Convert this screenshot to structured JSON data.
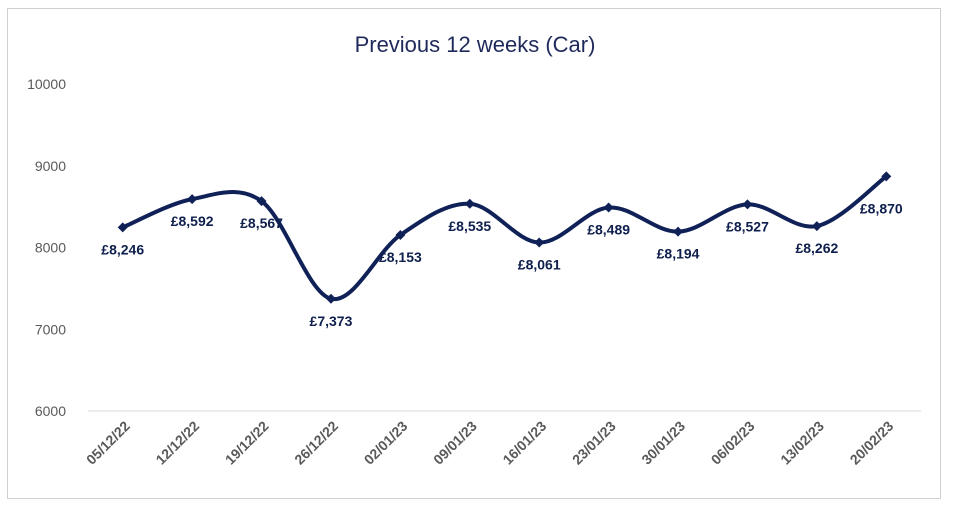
{
  "chart_data": {
    "type": "line",
    "title": "Previous 12 weeks (Car)",
    "xlabel": "",
    "ylabel": "",
    "ylim": [
      6000,
      10000
    ],
    "yticks": [
      6000,
      7000,
      8000,
      9000,
      10000
    ],
    "ytick_labels": [
      "6000",
      "7000",
      "8000",
      "9000",
      "10000"
    ],
    "categories": [
      "05/12/22",
      "12/12/22",
      "19/12/22",
      "26/12/22",
      "02/01/23",
      "09/01/23",
      "16/01/23",
      "23/01/23",
      "30/01/23",
      "06/02/23",
      "13/02/23",
      "20/02/23"
    ],
    "series": [
      {
        "name": "Car",
        "values": [
          8246,
          8592,
          8567,
          7373,
          8153,
          8535,
          8061,
          8489,
          8194,
          8527,
          8262,
          8870
        ],
        "labels": [
          "£8,246",
          "£8,592",
          "£8,567",
          "£7,373",
          "£8,153",
          "£8,535",
          "£8,061",
          "£8,489",
          "£8,194",
          "£8,527",
          "£8,262",
          "£8,870"
        ],
        "color": "#0f2157"
      }
    ],
    "grid": false,
    "legend": "none"
  },
  "colors": {
    "line": "#0f2157",
    "title": "#1f2a5a",
    "axis": "#d9d9d9",
    "tick_text": "#595959"
  }
}
